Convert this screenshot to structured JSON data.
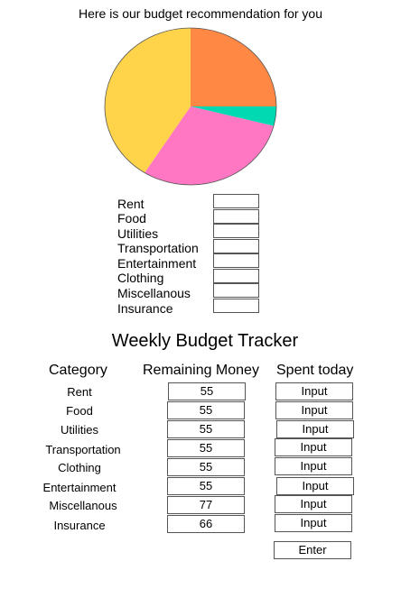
{
  "headline": "Here is our budget recommendation for you",
  "chart_data": {
    "type": "pie",
    "title": "",
    "slices": [
      {
        "label": "Orange",
        "value": 25,
        "color": "#FF8844"
      },
      {
        "label": "Teal",
        "value": 4,
        "color": "#00D9B1"
      },
      {
        "label": "Pink",
        "value": 30,
        "color": "#FF77C3"
      },
      {
        "label": "Yellow",
        "value": 41,
        "color": "#FFD34A"
      }
    ]
  },
  "categories": [
    "Rent",
    "Food",
    "Utilities",
    "Transportation",
    "Entertainment",
    "Clothing",
    "Miscellanous",
    "Insurance"
  ],
  "tracker": {
    "title": "Weekly Budget Tracker",
    "headers": {
      "category": "Category",
      "remaining": "Remaining Money",
      "spent": "Spent today"
    },
    "rows": [
      {
        "category": "Rent",
        "remaining": "55",
        "spent": "Input"
      },
      {
        "category": "Food",
        "remaining": "55",
        "spent": "Input"
      },
      {
        "category": "Utilities",
        "remaining": "55",
        "spent": "Input"
      },
      {
        "category": "Transportation",
        "remaining": "55",
        "spent": "Input"
      },
      {
        "category": "Clothing",
        "remaining": "55",
        "spent": "Input"
      },
      {
        "category": "Entertainment",
        "remaining": "55",
        "spent": "Input"
      },
      {
        "category": "Miscellanous",
        "remaining": "77",
        "spent": "Input"
      },
      {
        "category": "Insurance",
        "remaining": "66",
        "spent": "Input"
      }
    ],
    "enter_label": "Enter"
  }
}
